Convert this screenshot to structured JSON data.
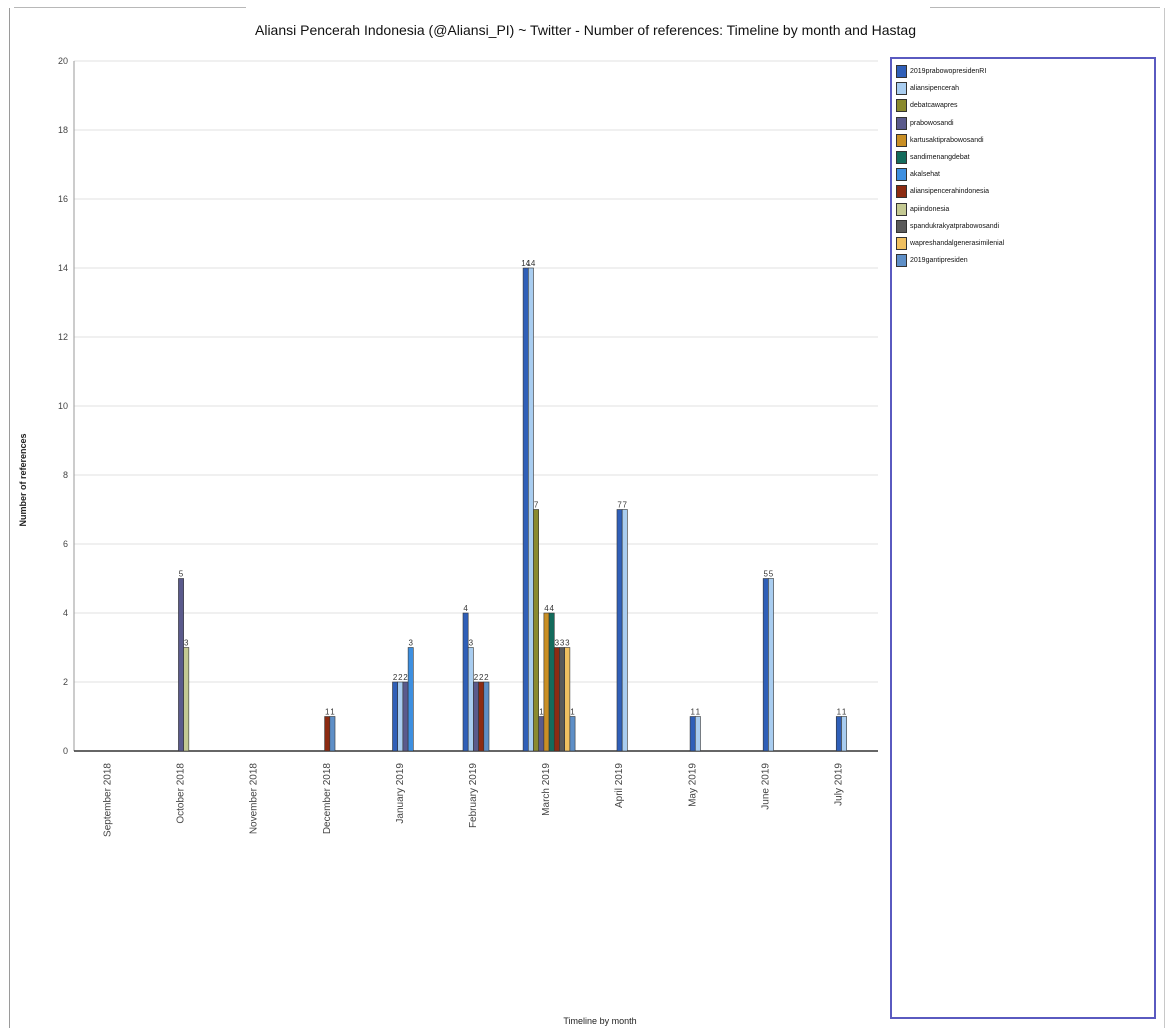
{
  "chart_data": {
    "type": "bar",
    "title": "Aliansi Pencerah Indonesia (@Aliansi_PI) ~ Twitter - Number of references: Timeline by month and Hastag",
    "xlabel": "Timeline by month",
    "ylabel": "Number of references",
    "ylim": [
      0,
      20
    ],
    "yticks": [
      0,
      2,
      4,
      6,
      8,
      10,
      12,
      14,
      16,
      18,
      20
    ],
    "grid": true,
    "legend_position": "right",
    "categories": [
      "September 2018",
      "October 2018",
      "November 2018",
      "December 2018",
      "January 2019",
      "February 2019",
      "March 2019",
      "April 2019",
      "May 2019",
      "June 2019",
      "July 2019"
    ],
    "series": [
      {
        "name": "2019prabowopresidenRI",
        "color": "#2f5fb8",
        "values": [
          0,
          0,
          0,
          0,
          2,
          4,
          14,
          7,
          1,
          5,
          1
        ]
      },
      {
        "name": "aliansipencerah",
        "color": "#a9cdf0",
        "values": [
          0,
          0,
          0,
          0,
          2,
          3,
          14,
          7,
          1,
          5,
          1
        ]
      },
      {
        "name": "debatcawapres",
        "color": "#8a8a2e",
        "values": [
          0,
          0,
          0,
          0,
          0,
          0,
          7,
          0,
          0,
          0,
          0
        ]
      },
      {
        "name": "prabowosandi",
        "color": "#5a5a8c",
        "values": [
          0,
          5,
          0,
          0,
          2,
          2,
          1,
          0,
          0,
          0,
          0
        ]
      },
      {
        "name": "kartusaktiprabowosandi",
        "color": "#c98f25",
        "values": [
          0,
          0,
          0,
          0,
          0,
          0,
          4,
          0,
          0,
          0,
          0
        ]
      },
      {
        "name": "sandimenangdebat",
        "color": "#136b5c",
        "values": [
          0,
          0,
          0,
          0,
          0,
          0,
          4,
          0,
          0,
          0,
          0
        ]
      },
      {
        "name": "akalsehat",
        "color": "#3d8fe0",
        "values": [
          0,
          0,
          0,
          0,
          3,
          0,
          0,
          0,
          0,
          0,
          0
        ]
      },
      {
        "name": "aliansipencerahindonesia",
        "color": "#8c2b12",
        "values": [
          0,
          0,
          0,
          1,
          0,
          2,
          3,
          0,
          0,
          0,
          0
        ]
      },
      {
        "name": "apiindonesia",
        "color": "#c4c993",
        "values": [
          0,
          3,
          0,
          0,
          0,
          0,
          0,
          0,
          0,
          0,
          0
        ]
      },
      {
        "name": "spandukrakyatprabowosandi",
        "color": "#5a5a5a",
        "values": [
          0,
          0,
          0,
          0,
          0,
          0,
          3,
          0,
          0,
          0,
          0
        ]
      },
      {
        "name": "wapreshandalgenerasimilenial",
        "color": "#f0c060",
        "values": [
          0,
          0,
          0,
          0,
          0,
          0,
          3,
          0,
          0,
          0,
          0
        ]
      },
      {
        "name": "2019gantipresiden",
        "color": "#5e8fc7",
        "values": [
          0,
          0,
          0,
          1,
          0,
          2,
          1,
          0,
          0,
          0,
          0
        ]
      }
    ]
  }
}
